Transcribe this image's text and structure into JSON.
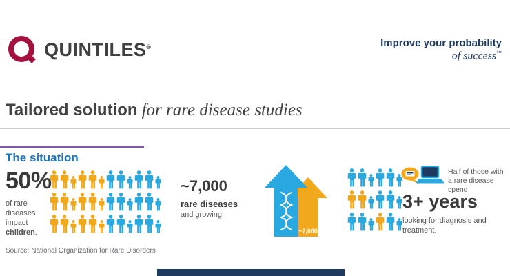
{
  "header": {
    "brand": "QUINTILES",
    "brand_reg": "®",
    "tagline_line1": "Improve your probability",
    "tagline_line2": "of success",
    "tagline_tm": "™"
  },
  "title": {
    "bold": "Tailored solution",
    "italic": "for rare disease studies"
  },
  "section": {
    "heading": "The situation"
  },
  "stat1": {
    "value": "50%",
    "caption_pre": "of rare diseases impact ",
    "caption_bold": "children",
    "caption_post": "."
  },
  "stat2": {
    "value": "~7,000",
    "line1": "rare diseases",
    "line2": "and growing",
    "arrow_label": "~7,000"
  },
  "stat3": {
    "callout": "Half of those with a rare disease spend",
    "value": "3+ years",
    "caption": "looking for diagnosis and treatment."
  },
  "source": "Source: National Organization for Rare Disorders",
  "icon_grids": {
    "left": {
      "rows": [
        "YYyYYyBBbBBb",
        "YYyYYyBBbBBb",
        "YYyYYyBBbBBb"
      ]
    },
    "right": {
      "rows": [
        "BBbBBb",
        "YYbBBb",
        "BBbYBb"
      ]
    }
  },
  "colors": {
    "brand_red": "#A3123F",
    "navy": "#1E3A5F",
    "blue": "#29A9E0",
    "heading_blue": "#1C75BC",
    "yellow": "#F2A81D",
    "purple": "#7A5CA8"
  }
}
